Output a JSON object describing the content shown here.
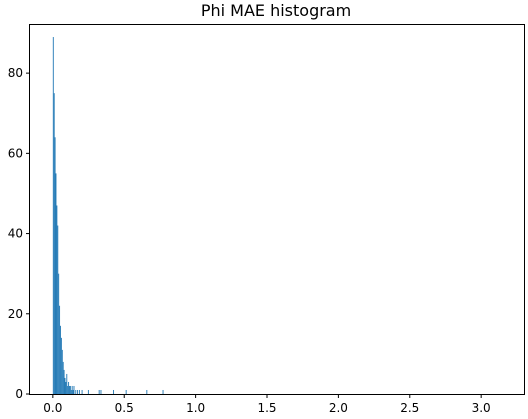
{
  "chart_data": {
    "type": "bar",
    "title": "Phi MAE histogram",
    "xlabel": "",
    "ylabel": "",
    "xlim": [
      -0.16,
      3.3
    ],
    "ylim": [
      0,
      92
    ],
    "x_ticks": [
      0.0,
      0.5,
      1.0,
      1.5,
      2.0,
      2.5,
      3.0
    ],
    "x_tick_labels": [
      "0.0",
      "0.5",
      "1.0",
      "1.5",
      "2.0",
      "2.5",
      "3.0"
    ],
    "y_ticks": [
      0,
      20,
      40,
      60,
      80
    ],
    "y_tick_labels": [
      "0",
      "20",
      "40",
      "60",
      "80"
    ],
    "bar_color": "#1f77b4",
    "grid": false,
    "legend": "none",
    "bin_width": 0.0063,
    "bins": [
      {
        "x": 0.0,
        "count": 89
      },
      {
        "x": 0.0063,
        "count": 75
      },
      {
        "x": 0.0126,
        "count": 64
      },
      {
        "x": 0.0189,
        "count": 55
      },
      {
        "x": 0.0252,
        "count": 47
      },
      {
        "x": 0.0315,
        "count": 42
      },
      {
        "x": 0.0378,
        "count": 30
      },
      {
        "x": 0.0441,
        "count": 22
      },
      {
        "x": 0.0504,
        "count": 17
      },
      {
        "x": 0.0567,
        "count": 14
      },
      {
        "x": 0.063,
        "count": 11
      },
      {
        "x": 0.0693,
        "count": 8
      },
      {
        "x": 0.0756,
        "count": 6
      },
      {
        "x": 0.0819,
        "count": 4
      },
      {
        "x": 0.0882,
        "count": 3
      },
      {
        "x": 0.0945,
        "count": 5
      },
      {
        "x": 0.1008,
        "count": 2
      },
      {
        "x": 0.1071,
        "count": 3
      },
      {
        "x": 0.1134,
        "count": 2
      },
      {
        "x": 0.1197,
        "count": 2
      },
      {
        "x": 0.126,
        "count": 1
      },
      {
        "x": 0.1323,
        "count": 2
      },
      {
        "x": 0.1386,
        "count": 1
      },
      {
        "x": 0.1449,
        "count": 2
      },
      {
        "x": 0.1575,
        "count": 1
      },
      {
        "x": 0.1701,
        "count": 1
      },
      {
        "x": 0.1827,
        "count": 1
      },
      {
        "x": 0.2016,
        "count": 1
      },
      {
        "x": 0.2457,
        "count": 1
      },
      {
        "x": 0.3213,
        "count": 1
      },
      {
        "x": 0.3339,
        "count": 1
      },
      {
        "x": 0.4221,
        "count": 1
      },
      {
        "x": 0.5103,
        "count": 1
      },
      {
        "x": 0.6552,
        "count": 1
      },
      {
        "x": 0.7686,
        "count": 1
      }
    ]
  }
}
